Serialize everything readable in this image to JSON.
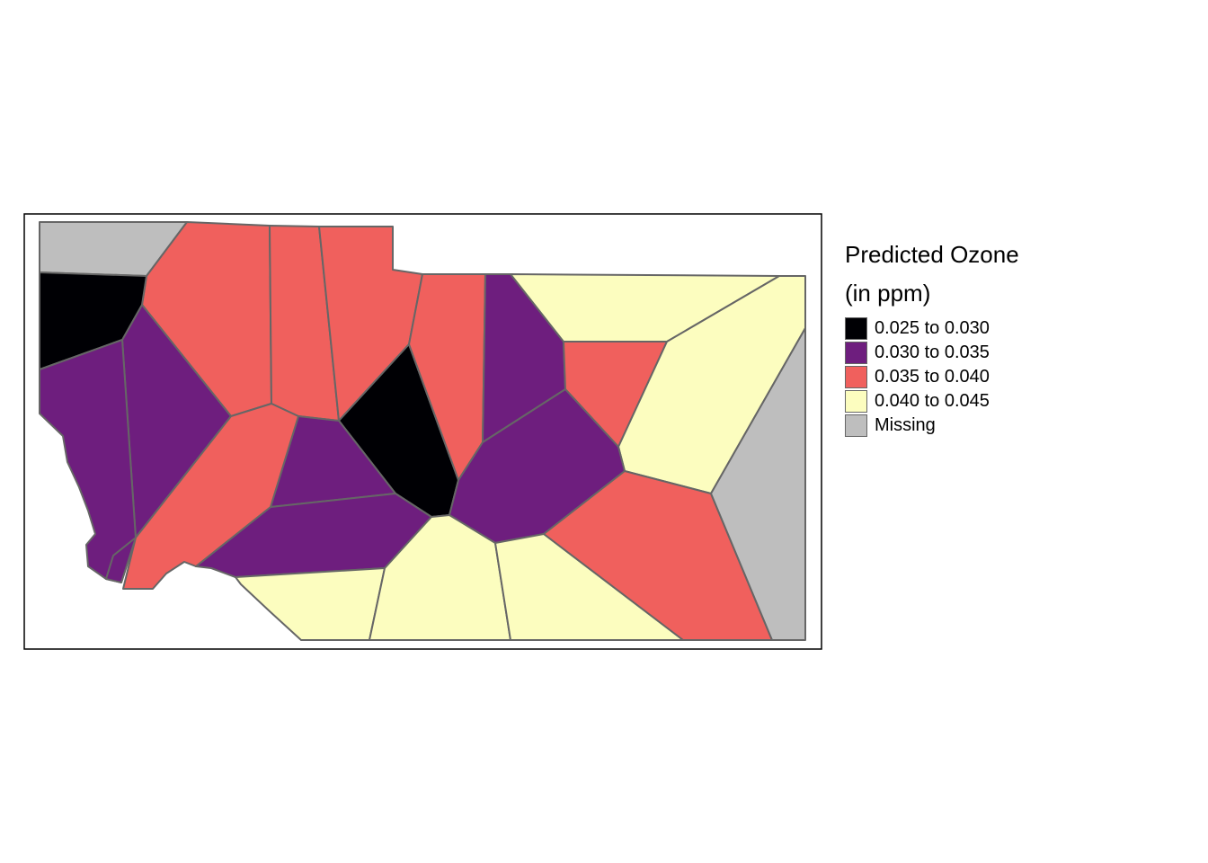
{
  "legend": {
    "title_line1": "Predicted Ozone",
    "title_line2": "(in ppm)",
    "items": [
      {
        "label": "0.025 to 0.030",
        "color": "#000004"
      },
      {
        "label": "0.030 to 0.035",
        "color": "#6e1e7e"
      },
      {
        "label": "0.035 to 0.040",
        "color": "#f0605d"
      },
      {
        "label": "0.040 to 0.045",
        "color": "#fcfdbf"
      },
      {
        "label": "Missing",
        "color": "#bebebe"
      }
    ]
  },
  "map": {
    "border_color": "#666666",
    "regions_by_class": [
      4,
      2,
      1,
      0,
      1,
      2,
      2,
      0,
      2,
      1,
      3,
      2,
      3,
      1,
      1,
      1,
      3,
      3,
      3,
      2,
      4,
      1,
      2
    ]
  }
}
